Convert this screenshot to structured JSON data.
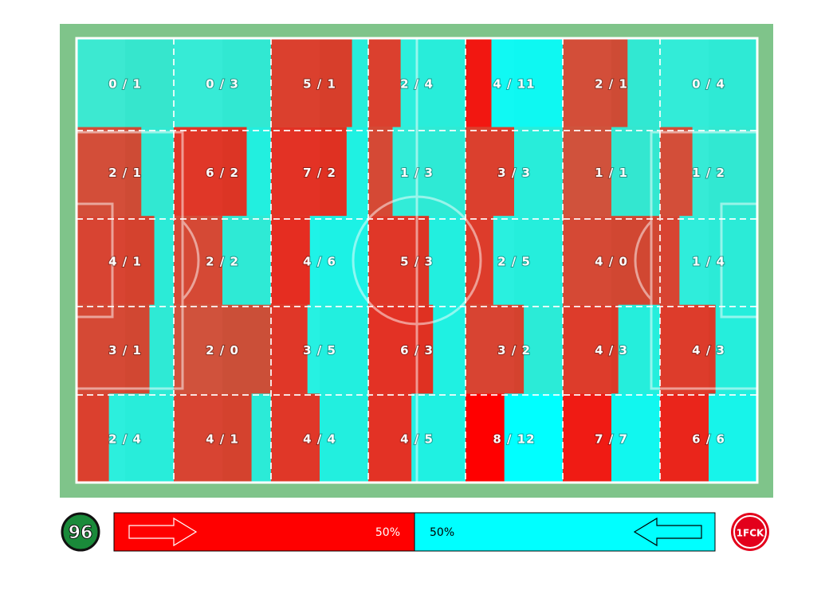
{
  "grid": {
    "rows": [
      [
        {
          "label": "0 / 1",
          "home": 0,
          "away": 1
        },
        {
          "label": "0 / 3",
          "home": 0,
          "away": 3
        },
        {
          "label": "5 / 1",
          "home": 5,
          "away": 1
        },
        {
          "label": "2 / 4",
          "home": 2,
          "away": 4
        },
        {
          "label": "4 / 11",
          "home": 4,
          "away": 11
        },
        {
          "label": "2 / 1",
          "home": 2,
          "away": 1
        },
        {
          "label": "0 / 4",
          "home": 0,
          "away": 4
        }
      ],
      [
        {
          "label": "2 / 1",
          "home": 2,
          "away": 1
        },
        {
          "label": "6 / 2",
          "home": 6,
          "away": 2
        },
        {
          "label": "7 / 2",
          "home": 7,
          "away": 2
        },
        {
          "label": "1 / 3",
          "home": 1,
          "away": 3
        },
        {
          "label": "3 / 3",
          "home": 3,
          "away": 3
        },
        {
          "label": "1 / 1",
          "home": 1,
          "away": 1
        },
        {
          "label": "1 / 2",
          "home": 1,
          "away": 2
        }
      ],
      [
        {
          "label": "4 / 1",
          "home": 4,
          "away": 1
        },
        {
          "label": "2 / 2",
          "home": 2,
          "away": 2
        },
        {
          "label": "4 / 6",
          "home": 4,
          "away": 6
        },
        {
          "label": "5 / 3",
          "home": 5,
          "away": 3
        },
        {
          "label": "2 / 5",
          "home": 2,
          "away": 5
        },
        {
          "label": "4 / 0",
          "home": 4,
          "away": 0
        },
        {
          "label": "1 / 4",
          "home": 1,
          "away": 4
        }
      ],
      [
        {
          "label": "3 / 1",
          "home": 3,
          "away": 1
        },
        {
          "label": "2 / 0",
          "home": 2,
          "away": 0
        },
        {
          "label": "3 / 5",
          "home": 3,
          "away": 5
        },
        {
          "label": "6 / 3",
          "home": 6,
          "away": 3
        },
        {
          "label": "3 / 2",
          "home": 3,
          "away": 2
        },
        {
          "label": "4 / 3",
          "home": 4,
          "away": 3
        },
        {
          "label": "4 / 3",
          "home": 4,
          "away": 3
        }
      ],
      [
        {
          "label": "2 / 4",
          "home": 2,
          "away": 4
        },
        {
          "label": "4 / 1",
          "home": 4,
          "away": 1
        },
        {
          "label": "4 / 4",
          "home": 4,
          "away": 4
        },
        {
          "label": "4 / 5",
          "home": 4,
          "away": 5
        },
        {
          "label": "8 / 12",
          "home": 8,
          "away": 12
        },
        {
          "label": "7 / 7",
          "home": 7,
          "away": 7
        },
        {
          "label": "6 / 6",
          "home": 6,
          "away": 6
        }
      ]
    ],
    "home_color": "#ff0000",
    "away_color": "#00ffff"
  },
  "share": {
    "home": 50,
    "away": 50,
    "home_label": "50%",
    "away_label": "50%"
  },
  "logos": {
    "left": "96",
    "right": "1FCK"
  }
}
